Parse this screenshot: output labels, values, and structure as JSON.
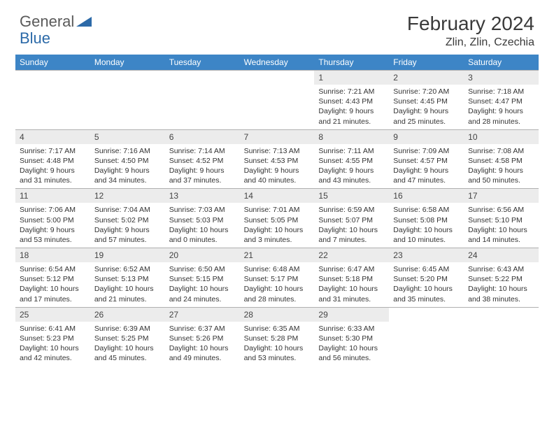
{
  "brand": {
    "part1": "General",
    "part2": "Blue",
    "part1_color": "#6a6a6a",
    "part2_color": "#2c6aa8",
    "shape_color": "#2c6aa8"
  },
  "title": "February 2024",
  "location": "Zlin, Zlin, Czechia",
  "colors": {
    "header_bar": "#3d85c6",
    "header_text": "#ffffff",
    "daynum_bg": "#ececec",
    "rule": "#b0b0b0",
    "body_text": "#333333"
  },
  "weekdays": [
    "Sunday",
    "Monday",
    "Tuesday",
    "Wednesday",
    "Thursday",
    "Friday",
    "Saturday"
  ],
  "weeks": [
    [
      null,
      null,
      null,
      null,
      {
        "n": "1",
        "sr": "Sunrise: 7:21 AM",
        "ss": "Sunset: 4:43 PM",
        "dl1": "Daylight: 9 hours",
        "dl2": "and 21 minutes."
      },
      {
        "n": "2",
        "sr": "Sunrise: 7:20 AM",
        "ss": "Sunset: 4:45 PM",
        "dl1": "Daylight: 9 hours",
        "dl2": "and 25 minutes."
      },
      {
        "n": "3",
        "sr": "Sunrise: 7:18 AM",
        "ss": "Sunset: 4:47 PM",
        "dl1": "Daylight: 9 hours",
        "dl2": "and 28 minutes."
      }
    ],
    [
      {
        "n": "4",
        "sr": "Sunrise: 7:17 AM",
        "ss": "Sunset: 4:48 PM",
        "dl1": "Daylight: 9 hours",
        "dl2": "and 31 minutes."
      },
      {
        "n": "5",
        "sr": "Sunrise: 7:16 AM",
        "ss": "Sunset: 4:50 PM",
        "dl1": "Daylight: 9 hours",
        "dl2": "and 34 minutes."
      },
      {
        "n": "6",
        "sr": "Sunrise: 7:14 AM",
        "ss": "Sunset: 4:52 PM",
        "dl1": "Daylight: 9 hours",
        "dl2": "and 37 minutes."
      },
      {
        "n": "7",
        "sr": "Sunrise: 7:13 AM",
        "ss": "Sunset: 4:53 PM",
        "dl1": "Daylight: 9 hours",
        "dl2": "and 40 minutes."
      },
      {
        "n": "8",
        "sr": "Sunrise: 7:11 AM",
        "ss": "Sunset: 4:55 PM",
        "dl1": "Daylight: 9 hours",
        "dl2": "and 43 minutes."
      },
      {
        "n": "9",
        "sr": "Sunrise: 7:09 AM",
        "ss": "Sunset: 4:57 PM",
        "dl1": "Daylight: 9 hours",
        "dl2": "and 47 minutes."
      },
      {
        "n": "10",
        "sr": "Sunrise: 7:08 AM",
        "ss": "Sunset: 4:58 PM",
        "dl1": "Daylight: 9 hours",
        "dl2": "and 50 minutes."
      }
    ],
    [
      {
        "n": "11",
        "sr": "Sunrise: 7:06 AM",
        "ss": "Sunset: 5:00 PM",
        "dl1": "Daylight: 9 hours",
        "dl2": "and 53 minutes."
      },
      {
        "n": "12",
        "sr": "Sunrise: 7:04 AM",
        "ss": "Sunset: 5:02 PM",
        "dl1": "Daylight: 9 hours",
        "dl2": "and 57 minutes."
      },
      {
        "n": "13",
        "sr": "Sunrise: 7:03 AM",
        "ss": "Sunset: 5:03 PM",
        "dl1": "Daylight: 10 hours",
        "dl2": "and 0 minutes."
      },
      {
        "n": "14",
        "sr": "Sunrise: 7:01 AM",
        "ss": "Sunset: 5:05 PM",
        "dl1": "Daylight: 10 hours",
        "dl2": "and 3 minutes."
      },
      {
        "n": "15",
        "sr": "Sunrise: 6:59 AM",
        "ss": "Sunset: 5:07 PM",
        "dl1": "Daylight: 10 hours",
        "dl2": "and 7 minutes."
      },
      {
        "n": "16",
        "sr": "Sunrise: 6:58 AM",
        "ss": "Sunset: 5:08 PM",
        "dl1": "Daylight: 10 hours",
        "dl2": "and 10 minutes."
      },
      {
        "n": "17",
        "sr": "Sunrise: 6:56 AM",
        "ss": "Sunset: 5:10 PM",
        "dl1": "Daylight: 10 hours",
        "dl2": "and 14 minutes."
      }
    ],
    [
      {
        "n": "18",
        "sr": "Sunrise: 6:54 AM",
        "ss": "Sunset: 5:12 PM",
        "dl1": "Daylight: 10 hours",
        "dl2": "and 17 minutes."
      },
      {
        "n": "19",
        "sr": "Sunrise: 6:52 AM",
        "ss": "Sunset: 5:13 PM",
        "dl1": "Daylight: 10 hours",
        "dl2": "and 21 minutes."
      },
      {
        "n": "20",
        "sr": "Sunrise: 6:50 AM",
        "ss": "Sunset: 5:15 PM",
        "dl1": "Daylight: 10 hours",
        "dl2": "and 24 minutes."
      },
      {
        "n": "21",
        "sr": "Sunrise: 6:48 AM",
        "ss": "Sunset: 5:17 PM",
        "dl1": "Daylight: 10 hours",
        "dl2": "and 28 minutes."
      },
      {
        "n": "22",
        "sr": "Sunrise: 6:47 AM",
        "ss": "Sunset: 5:18 PM",
        "dl1": "Daylight: 10 hours",
        "dl2": "and 31 minutes."
      },
      {
        "n": "23",
        "sr": "Sunrise: 6:45 AM",
        "ss": "Sunset: 5:20 PM",
        "dl1": "Daylight: 10 hours",
        "dl2": "and 35 minutes."
      },
      {
        "n": "24",
        "sr": "Sunrise: 6:43 AM",
        "ss": "Sunset: 5:22 PM",
        "dl1": "Daylight: 10 hours",
        "dl2": "and 38 minutes."
      }
    ],
    [
      {
        "n": "25",
        "sr": "Sunrise: 6:41 AM",
        "ss": "Sunset: 5:23 PM",
        "dl1": "Daylight: 10 hours",
        "dl2": "and 42 minutes."
      },
      {
        "n": "26",
        "sr": "Sunrise: 6:39 AM",
        "ss": "Sunset: 5:25 PM",
        "dl1": "Daylight: 10 hours",
        "dl2": "and 45 minutes."
      },
      {
        "n": "27",
        "sr": "Sunrise: 6:37 AM",
        "ss": "Sunset: 5:26 PM",
        "dl1": "Daylight: 10 hours",
        "dl2": "and 49 minutes."
      },
      {
        "n": "28",
        "sr": "Sunrise: 6:35 AM",
        "ss": "Sunset: 5:28 PM",
        "dl1": "Daylight: 10 hours",
        "dl2": "and 53 minutes."
      },
      {
        "n": "29",
        "sr": "Sunrise: 6:33 AM",
        "ss": "Sunset: 5:30 PM",
        "dl1": "Daylight: 10 hours",
        "dl2": "and 56 minutes."
      },
      null,
      null
    ]
  ]
}
